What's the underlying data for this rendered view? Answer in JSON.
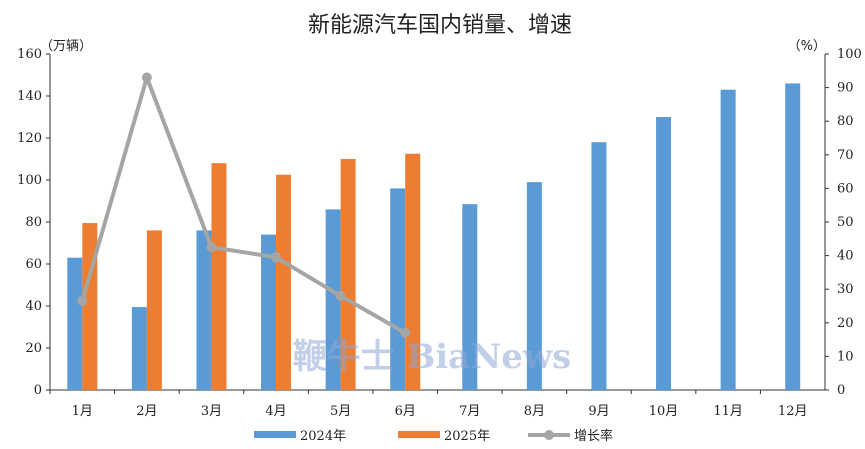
{
  "chart_data": {
    "type": "bar",
    "title": "新能源汽车国内销量、增速",
    "left_unit": "（万辆）",
    "right_unit": "（%）",
    "categories": [
      "1月",
      "2月",
      "3月",
      "4月",
      "5月",
      "6月",
      "7月",
      "8月",
      "9月",
      "10月",
      "11月",
      "12月"
    ],
    "left_axis": {
      "min": 0,
      "max": 160,
      "ticks": [
        "0",
        "20",
        "40",
        "60",
        "80",
        "100",
        "120",
        "140",
        "160"
      ]
    },
    "right_axis": {
      "min": 0,
      "max": 100,
      "ticks": [
        "0",
        "10",
        "20",
        "30",
        "40",
        "50",
        "60",
        "70",
        "80",
        "90",
        "100"
      ]
    },
    "grid": false,
    "legend_position": "bottom",
    "series": [
      {
        "name": "2024年",
        "kind": "bar",
        "axis": "left",
        "color": "#5b9bd5",
        "values": [
          63,
          39.5,
          76,
          74,
          86,
          96,
          88.5,
          99,
          118,
          130,
          143,
          146
        ]
      },
      {
        "name": "2025年",
        "kind": "bar",
        "axis": "left",
        "color": "#ed7d31",
        "values": [
          79.5,
          76,
          108,
          102.5,
          110,
          112.5,
          null,
          null,
          null,
          null,
          null,
          null
        ]
      },
      {
        "name": "增长率",
        "kind": "line",
        "axis": "right",
        "color": "#a5a5a5",
        "values": [
          26.5,
          93,
          42.5,
          39.5,
          28,
          17,
          null,
          null,
          null,
          null,
          null,
          null
        ]
      }
    ],
    "watermark": "鞭牛士 BiaNews"
  }
}
